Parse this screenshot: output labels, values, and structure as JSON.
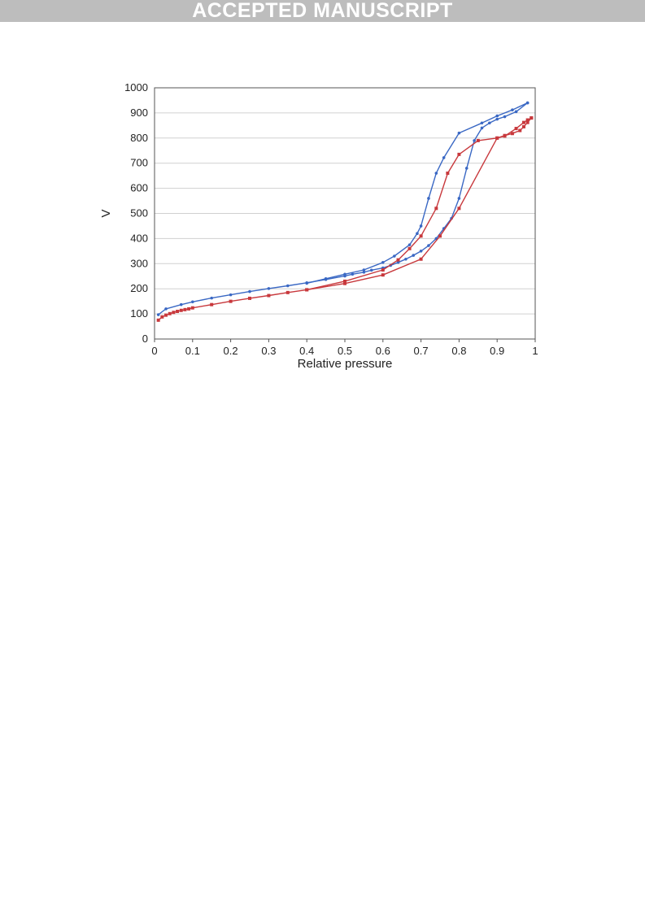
{
  "banner": {
    "text": "ACCEPTED MANUSCRIPT"
  },
  "colors": {
    "blue": "#3a68c4",
    "red": "#c8383c",
    "grid": "#d0d0d0",
    "axis": "#555555"
  },
  "chart_data": {
    "type": "line",
    "title": "",
    "xlabel": "Relative pressure",
    "ylabel": "V",
    "xlim": [
      0,
      1
    ],
    "ylim": [
      0,
      1000
    ],
    "grid": true,
    "legend": "none",
    "xticks": [
      "0",
      "0.1",
      "0.2",
      "0.3",
      "0.4",
      "0.5",
      "0.6",
      "0.7",
      "0.8",
      "0.9",
      "1"
    ],
    "yticks": [
      "0",
      "100",
      "200",
      "300",
      "400",
      "500",
      "600",
      "700",
      "800",
      "900",
      "1000"
    ],
    "series": [
      {
        "color": "#3a68c4",
        "branch": "adsorption",
        "x": [
          0.01,
          0.03,
          0.07,
          0.1,
          0.15,
          0.2,
          0.25,
          0.3,
          0.35,
          0.4,
          0.45,
          0.5,
          0.52,
          0.55,
          0.57,
          0.6,
          0.62,
          0.64,
          0.66,
          0.68,
          0.7,
          0.72,
          0.74,
          0.76,
          0.78,
          0.8,
          0.82,
          0.84,
          0.86,
          0.88,
          0.9,
          0.92,
          0.95,
          0.98
        ],
        "y": [
          97,
          120,
          137,
          148,
          163,
          176,
          189,
          201,
          212,
          224,
          237,
          251,
          258,
          266,
          274,
          283,
          293,
          305,
          318,
          333,
          350,
          372,
          400,
          440,
          480,
          560,
          680,
          790,
          840,
          860,
          875,
          885,
          905,
          940
        ]
      },
      {
        "color": "#3a68c4",
        "branch": "desorption",
        "x": [
          0.98,
          0.94,
          0.9,
          0.86,
          0.8,
          0.76,
          0.74,
          0.72,
          0.7,
          0.69,
          0.67,
          0.63,
          0.6,
          0.55,
          0.5,
          0.45,
          0.4
        ],
        "y": [
          940,
          912,
          888,
          860,
          820,
          722,
          660,
          560,
          450,
          420,
          375,
          330,
          305,
          275,
          258,
          240,
          222
        ]
      },
      {
        "color": "#c8383c",
        "branch": "adsorption",
        "x": [
          0.01,
          0.02,
          0.03,
          0.04,
          0.05,
          0.06,
          0.07,
          0.08,
          0.09,
          0.1,
          0.15,
          0.2,
          0.25,
          0.3,
          0.35,
          0.4,
          0.5,
          0.6,
          0.7,
          0.75,
          0.8,
          0.9,
          0.92,
          0.94,
          0.96,
          0.97,
          0.98,
          0.99
        ],
        "y": [
          75,
          88,
          95,
          101,
          106,
          110,
          114,
          117,
          120,
          124,
          137,
          150,
          162,
          173,
          185,
          196,
          221,
          255,
          318,
          410,
          520,
          800,
          810,
          818,
          830,
          845,
          862,
          880
        ]
      },
      {
        "color": "#c8383c",
        "branch": "desorption",
        "x": [
          0.99,
          0.98,
          0.97,
          0.95,
          0.92,
          0.9,
          0.85,
          0.8,
          0.77,
          0.74,
          0.7,
          0.67,
          0.64,
          0.6,
          0.5,
          0.4
        ],
        "y": [
          880,
          872,
          862,
          838,
          808,
          800,
          790,
          735,
          660,
          520,
          410,
          360,
          315,
          275,
          230,
          196
        ]
      }
    ]
  }
}
